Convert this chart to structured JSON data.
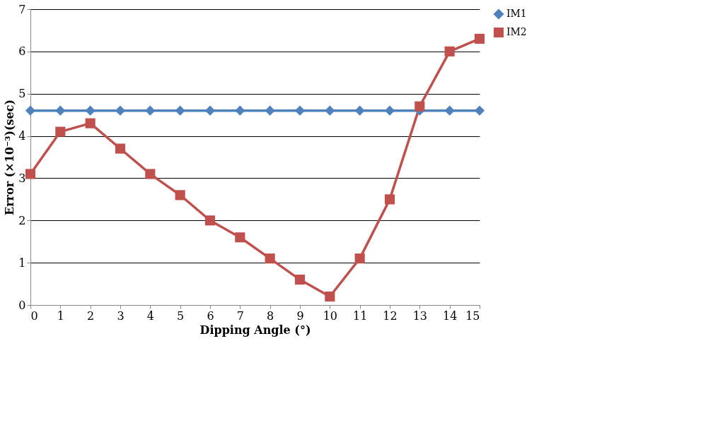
{
  "chart_data": {
    "type": "line",
    "xlabel": "Dipping Angle (°)",
    "ylabel": "Error (×10⁻³)(sec)",
    "x": [
      0,
      1,
      2,
      3,
      4,
      5,
      6,
      7,
      8,
      9,
      10,
      11,
      12,
      13,
      14,
      15
    ],
    "series": [
      {
        "name": "IM1",
        "color": "#4f81bd",
        "marker": "diamond",
        "values": [
          4.6,
          4.6,
          4.6,
          4.6,
          4.6,
          4.6,
          4.6,
          4.6,
          4.6,
          4.6,
          4.6,
          4.6,
          4.6,
          4.6,
          4.6,
          4.6
        ]
      },
      {
        "name": "IM2",
        "color": "#c0504d",
        "marker": "square",
        "values": [
          3.1,
          4.1,
          4.3,
          3.7,
          3.1,
          2.6,
          2.0,
          1.6,
          1.1,
          0.6,
          0.2,
          1.1,
          2.5,
          4.7,
          6.0,
          6.3
        ]
      }
    ],
    "xlim": [
      0,
      15
    ],
    "xticks": [
      0,
      1,
      2,
      3,
      4,
      5,
      6,
      7,
      8,
      9,
      10,
      11,
      12,
      13,
      14,
      15
    ],
    "ylim": [
      0,
      7
    ],
    "yticks": [
      0,
      1,
      2,
      3,
      4,
      5,
      6,
      7
    ],
    "grid": "y",
    "legend": "right",
    "line_style": "solid"
  }
}
